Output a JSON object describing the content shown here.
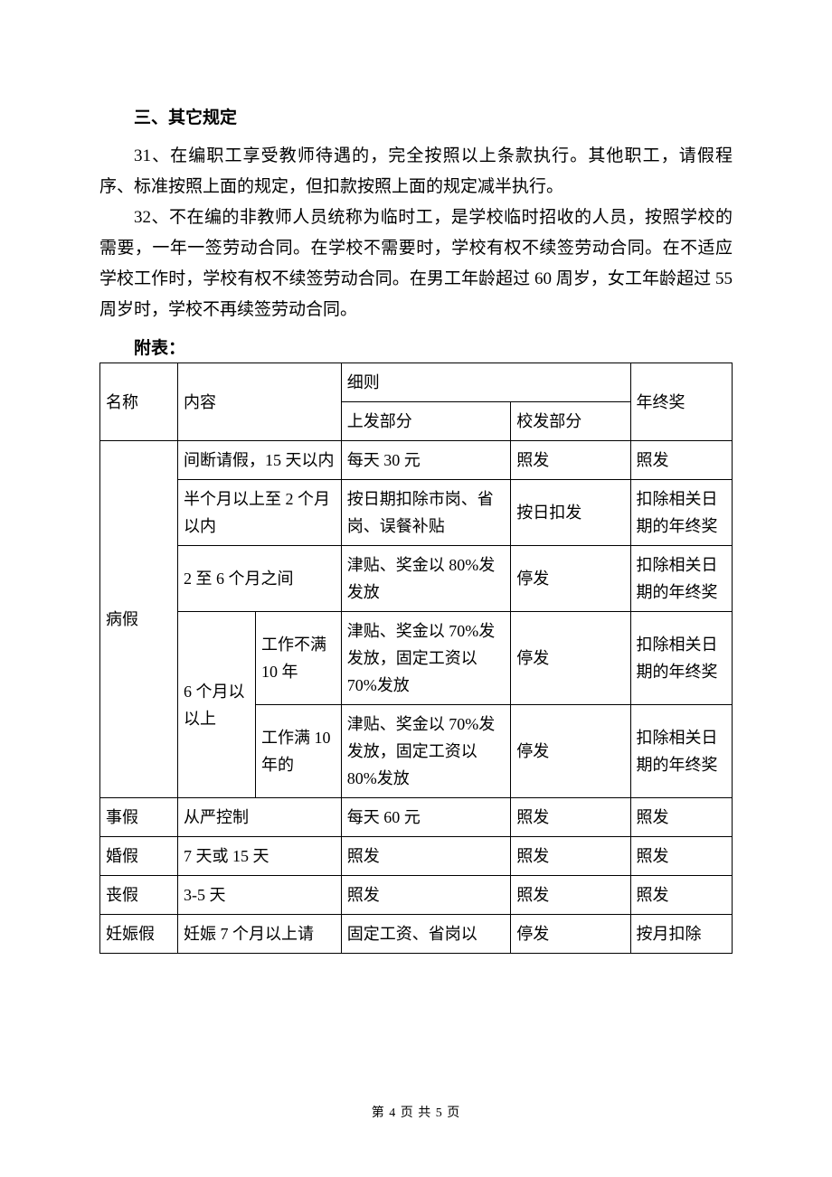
{
  "section_title": "三、其它规定",
  "para31": "31、在编职工享受教师待遇的，完全按照以上条款执行。其他职工，请假程序、标准按照上面的规定，但扣款按照上面的规定减半执行。",
  "para32": "32、不在编的非教师人员统称为临时工，是学校临时招收的人员，按照学校的需要，一年一签劳动合同。在学校不需要时，学校有权不续签劳动合同。在不适应学校工作时，学校有权不续签劳动合同。在男工年龄超过 60 周岁，女工年龄超过 55 周岁时，学校不再续签劳动合同。",
  "attach_label": "附表：",
  "table": {
    "header": {
      "name": "名称",
      "content": "内容",
      "detail": "细则",
      "detail_sub1": "上发部分",
      "detail_sub2": "校发部分",
      "bonus": "年终奖"
    },
    "rows": {
      "sick": {
        "name": "病假",
        "r1": {
          "content": "间断请假，15 天以内",
          "d1": "每天 30 元",
          "d2": "照发",
          "bonus": "照发"
        },
        "r2": {
          "content": "半个月以上至 2 个月以内",
          "d1": "按日期扣除市岗、省岗、误餐补贴",
          "d2": "按日扣发",
          "bonus": "扣除相关日期的年终奖"
        },
        "r3": {
          "content": "2 至 6 个月之间",
          "d1": "津贴、奖金以 80%发发放",
          "d2": "停发",
          "bonus": "扣除相关日期的年终奖"
        },
        "r4": {
          "content_a": "6 个月以以上",
          "sub1": {
            "content_b": "工作不满10 年",
            "d1": "津贴、奖金以 70%发发放，固定工资以70%发放",
            "d2": "停发",
            "bonus": "扣除相关日期的年终奖"
          },
          "sub2": {
            "content_b": "工作满 10年的",
            "d1": "津贴、奖金以 70%发发放，固定工资以80%发放",
            "d2": "停发",
            "bonus": "扣除相关日期的年终奖"
          }
        }
      },
      "personal": {
        "name": "事假",
        "content": "从严控制",
        "d1": "每天 60 元",
        "d2": "照发",
        "bonus": "照发"
      },
      "marriage": {
        "name": "婚假",
        "content": "7 天或 15 天",
        "d1": "照发",
        "d2": "照发",
        "bonus": "照发"
      },
      "funeral": {
        "name": "丧假",
        "content": "3-5 天",
        "d1": "照发",
        "d2": "照发",
        "bonus": "照发"
      },
      "pregnancy": {
        "name": "妊娠假",
        "content": "妊娠 7 个月以上请",
        "d1": "固定工资、省岗以",
        "d2": "停发",
        "bonus": "按月扣除"
      }
    }
  },
  "footer": "第 4 页 共 5 页"
}
